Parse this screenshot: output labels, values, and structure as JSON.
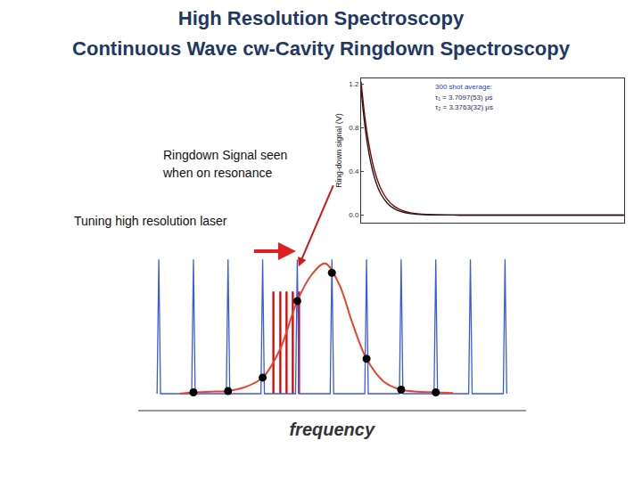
{
  "title": "High Resolution Spectroscopy",
  "subtitle": "Continuous Wave cw-Cavity Ringdown Spectroscopy",
  "labels": {
    "ringdown": "Ringdown Signal seen when on resonance",
    "tuning": "Tuning high resolution laser"
  },
  "chart_data": [
    {
      "type": "line",
      "y_label": "Ring-down signal (V)",
      "x": [
        0,
        1,
        2,
        3,
        4,
        5,
        6,
        8,
        10,
        12,
        15,
        20,
        30,
        40,
        60,
        80
      ],
      "series": [
        {
          "color": "#8b0000",
          "values": [
            1.22,
            0.932,
            0.712,
            0.544,
            0.415,
            0.317,
            0.242,
            0.141,
            0.082,
            0.048,
            0.021,
            0.005,
            0,
            0,
            0,
            0
          ]
        },
        {
          "color": "#1a1a1a",
          "values": [
            1.15,
            0.854,
            0.634,
            0.471,
            0.35,
            0.26,
            0.193,
            0.107,
            0.059,
            0.033,
            0.013,
            0.003,
            0,
            0,
            0,
            0
          ]
        }
      ],
      "xlim": [
        0,
        80
      ],
      "ylim": [
        -0.07,
        1.25
      ],
      "yticks": [
        {
          "value": 0,
          "label": "0.0"
        },
        0.4,
        0.8,
        1.2
      ],
      "tick_labels": "y",
      "grid": false,
      "annotations": [
        "300 shot average:",
        "τ₁ = 3.7097(53) μs",
        "τ₂ = 3.3763(32) μs"
      ]
    },
    {
      "type": "line",
      "x_label": "frequency",
      "xlim": [
        -0.6,
        10.6
      ],
      "ylim": [
        -0.12,
        1.04
      ],
      "tick_labels": false,
      "grid": false,
      "series": [
        {
          "type": "spikes",
          "color": "#3b5bdb",
          "x": [
            0,
            1,
            2,
            3,
            4,
            5,
            6,
            7,
            8,
            9,
            10
          ],
          "values": [
            1,
            1,
            1,
            1,
            1,
            1,
            1,
            1,
            1,
            1,
            1
          ]
        },
        {
          "type": "line",
          "color": "#e8432b",
          "line_style": "smooth",
          "x": [
            0.6,
            1,
            1.5,
            2,
            2.5,
            3,
            3.5,
            4,
            4.4,
            4.8,
            5.2,
            5.6,
            6,
            6.5,
            7,
            7.5,
            8,
            8.5
          ],
          "values": [
            0,
            0.01,
            0.015,
            0.02,
            0.05,
            0.12,
            0.33,
            0.69,
            0.88,
            0.97,
            0.82,
            0.52,
            0.26,
            0.09,
            0.03,
            0.015,
            0.01,
            0.005
          ]
        },
        {
          "type": "scatter",
          "color": "#000000",
          "marker": "circle",
          "x": [
            1,
            2,
            3,
            4,
            5,
            6,
            7,
            8
          ],
          "values": [
            0.01,
            0.02,
            0.12,
            0.69,
            0.9,
            0.26,
            0.03,
            0.01
          ]
        },
        {
          "type": "bar",
          "color": "#e00000",
          "x": [
            3.31,
            3.51,
            3.69,
            3.87,
            4.05
          ],
          "values": [
            0.76,
            0.76,
            0.76,
            0.76,
            0.76
          ]
        }
      ]
    }
  ]
}
